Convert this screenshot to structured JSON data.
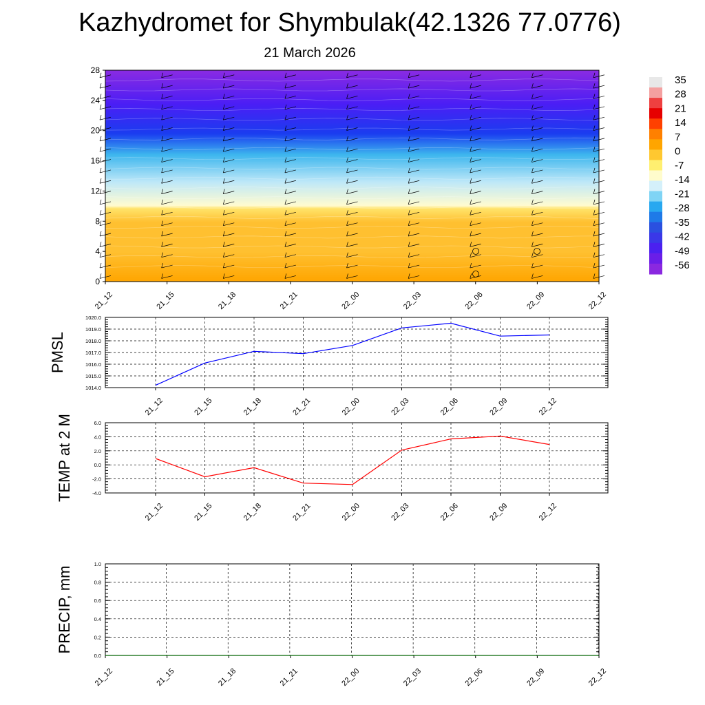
{
  "header": {
    "title": "Kazhydromet for Shymbulak(42.1326 77.0776)",
    "date": "21 March 2026"
  },
  "chart_data": [
    {
      "type": "heatmap",
      "name": "temperature-cross-section",
      "x_tick_labels": [
        "21_12",
        "21_15",
        "21_18",
        "21_21",
        "22_00",
        "22_03",
        "22_06",
        "22_09",
        "22_12"
      ],
      "y_tick_labels": [
        "0",
        "4",
        "8",
        "12",
        "16",
        "20",
        "24",
        "28"
      ],
      "ylim": [
        0,
        28
      ],
      "colorbar_labels": [
        "35",
        "28",
        "21",
        "14",
        "7",
        "0",
        "-7",
        "-14",
        "-21",
        "-28",
        "-35",
        "-42",
        "-49",
        "-56"
      ],
      "colors": {
        "top": "#8a2be2",
        "upper": "#4b1ef5",
        "cold_band": "#1a3cf0",
        "mid_cold": "#3db6ee",
        "cool": "#bfe8f8",
        "boundary": "#fffbd0",
        "warm_top": "#ffe36a",
        "warm": "#ffc030",
        "surface": "#ffa500"
      },
      "colorbar_colors": [
        "#e8e8e8",
        "#f4a0a0",
        "#ee4040",
        "#e60000",
        "#ff4000",
        "#ff8000",
        "#ffa500",
        "#ffc830",
        "#ffef70",
        "#fffccc",
        "#d4f0fa",
        "#7fd4f5",
        "#28a8f0",
        "#1e7ae8",
        "#2a50e0",
        "#3a38e8",
        "#4b20f0",
        "#6a1ee8",
        "#8a28e0"
      ]
    },
    {
      "type": "line",
      "name": "pmsl",
      "ylabel": "PMSL",
      "categories": [
        "21_12",
        "21_15",
        "21_18",
        "21_21",
        "22_00",
        "22_03",
        "22_06",
        "22_09",
        "22_12"
      ],
      "values": [
        1014.2,
        1016.1,
        1017.1,
        1016.9,
        1017.6,
        1019.1,
        1019.5,
        1018.4,
        1018.5
      ],
      "ylim": [
        1014.0,
        1020.0
      ],
      "y_tick_labels": [
        "1020.0",
        "1019.0",
        "1018.0",
        "1017.0",
        "1016.0",
        "1015.0",
        "1014.0"
      ],
      "line_color": "#0000ff"
    },
    {
      "type": "line",
      "name": "temp-2m",
      "ylabel": "TEMP at 2 M",
      "categories": [
        "21_12",
        "21_15",
        "21_18",
        "21_21",
        "22_00",
        "22_03",
        "22_06",
        "22_09",
        "22_12"
      ],
      "values": [
        0.9,
        -1.7,
        -0.4,
        -2.6,
        -2.8,
        2.1,
        3.7,
        4.1,
        2.9
      ],
      "ylim": [
        -4.0,
        6.0
      ],
      "y_tick_labels": [
        "6.0",
        "4.0",
        "2.0",
        "0.0",
        "-2.0",
        "-4.0"
      ],
      "line_color": "#ff0000"
    },
    {
      "type": "line",
      "name": "precip",
      "ylabel": "PRECIP, mm",
      "categories": [
        "21_12",
        "21_15",
        "21_18",
        "21_21",
        "22_00",
        "22_03",
        "22_06",
        "22_09",
        "22_12"
      ],
      "values": [
        0,
        0,
        0,
        0,
        0,
        0,
        0,
        0,
        0
      ],
      "ylim": [
        0.0,
        1.0
      ],
      "y_tick_labels": [
        "1.0",
        "0.8",
        "0.6",
        "0.4",
        "0.2",
        "0.0"
      ],
      "line_color": "#006400"
    }
  ]
}
